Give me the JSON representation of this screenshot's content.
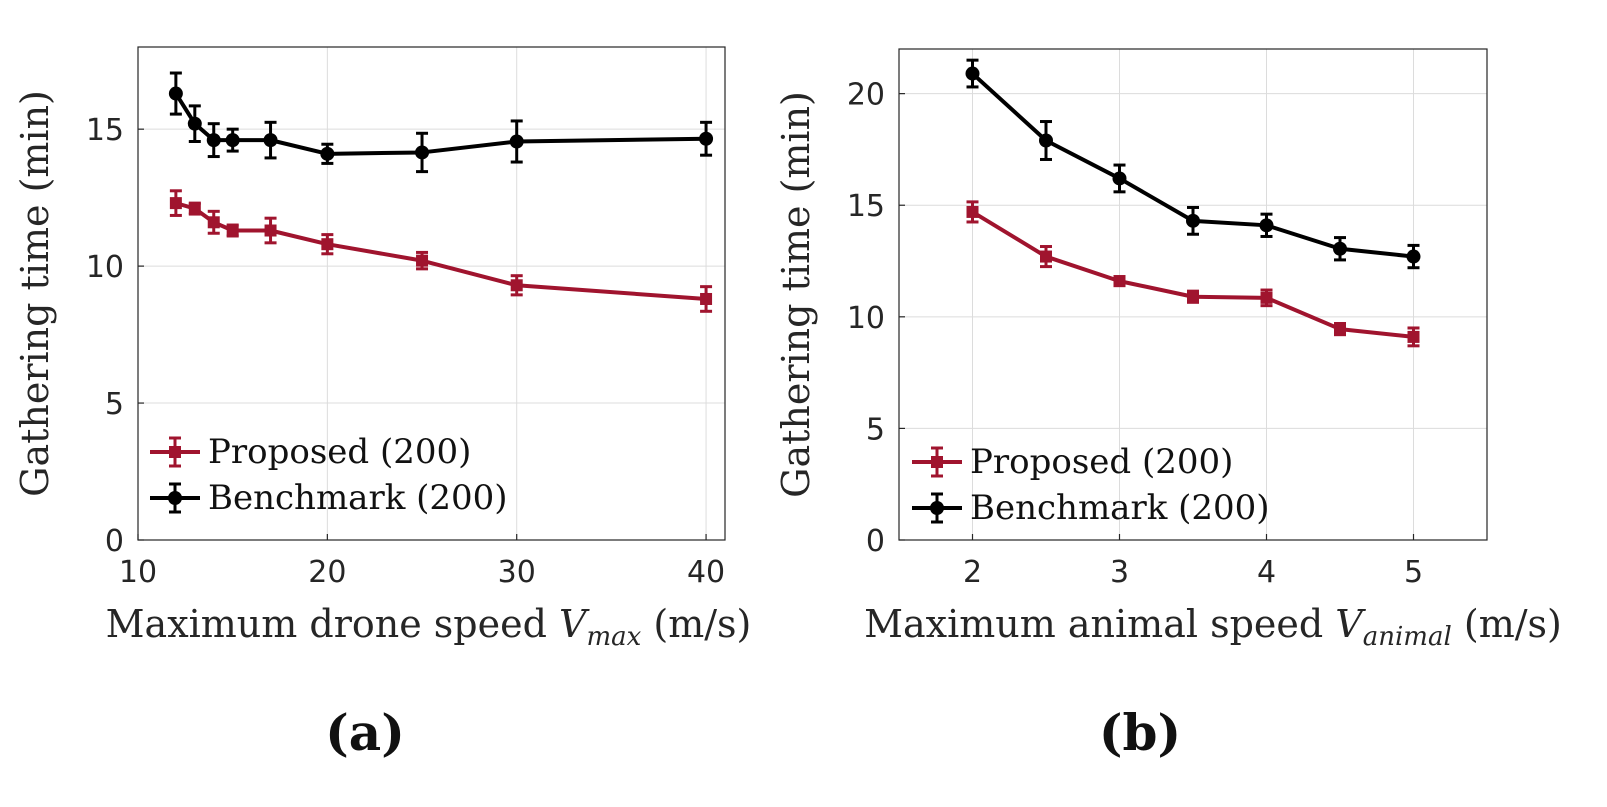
{
  "chart_data": [
    {
      "type": "line",
      "id": "a",
      "panel_label": "(a)",
      "xlabel_prefix": "Maximum drone speed ",
      "xlabel_var": "V",
      "xlabel_sub": "max",
      "xlabel_suffix": " (m/s)",
      "ylabel": "Gathering time (min)",
      "xlim": [
        10,
        41
      ],
      "ylim": [
        0,
        18
      ],
      "xticks": [
        10,
        20,
        30,
        40
      ],
      "yticks": [
        0,
        5,
        10,
        15
      ],
      "grid": true,
      "legend_position": "bottom-left",
      "x": [
        12,
        13,
        14,
        15,
        17,
        20,
        25,
        30,
        40
      ],
      "series": [
        {
          "name": "Proposed (200)",
          "color": "#a0142e",
          "marker": "square",
          "values": [
            12.3,
            12.1,
            11.6,
            11.3,
            11.3,
            10.8,
            10.2,
            9.3,
            8.8
          ],
          "errors": [
            0.45,
            0.2,
            0.4,
            0.2,
            0.45,
            0.35,
            0.3,
            0.35,
            0.45
          ]
        },
        {
          "name": "Benchmark (200)",
          "color": "#000000",
          "marker": "circle",
          "values": [
            16.3,
            15.2,
            14.6,
            14.6,
            14.6,
            14.1,
            14.15,
            14.55,
            14.65
          ],
          "errors": [
            0.75,
            0.65,
            0.6,
            0.4,
            0.65,
            0.35,
            0.7,
            0.75,
            0.6
          ]
        }
      ]
    },
    {
      "type": "line",
      "id": "b",
      "panel_label": "(b)",
      "xlabel_prefix": "Maximum animal speed ",
      "xlabel_var": "V",
      "xlabel_sub": "animal",
      "xlabel_suffix": " (m/s)",
      "ylabel": "Gathering time (min)",
      "xlim": [
        1.5,
        5.5
      ],
      "ylim": [
        0,
        22
      ],
      "xticks": [
        2,
        3,
        4,
        5
      ],
      "yticks": [
        0,
        5,
        10,
        15,
        20
      ],
      "grid": true,
      "legend_position": "bottom-left",
      "x": [
        2,
        2.5,
        3,
        3.5,
        4,
        4.5,
        5
      ],
      "series": [
        {
          "name": "Proposed (200)",
          "color": "#a0142e",
          "marker": "square",
          "values": [
            14.7,
            12.7,
            11.6,
            10.9,
            10.85,
            9.45,
            9.1
          ],
          "errors": [
            0.45,
            0.45,
            0.2,
            0.25,
            0.35,
            0.25,
            0.4
          ]
        },
        {
          "name": "Benchmark (200)",
          "color": "#000000",
          "marker": "circle",
          "values": [
            20.9,
            17.9,
            16.2,
            14.3,
            14.1,
            13.05,
            12.7
          ],
          "errors": [
            0.6,
            0.85,
            0.6,
            0.6,
            0.5,
            0.5,
            0.5
          ]
        }
      ]
    }
  ]
}
